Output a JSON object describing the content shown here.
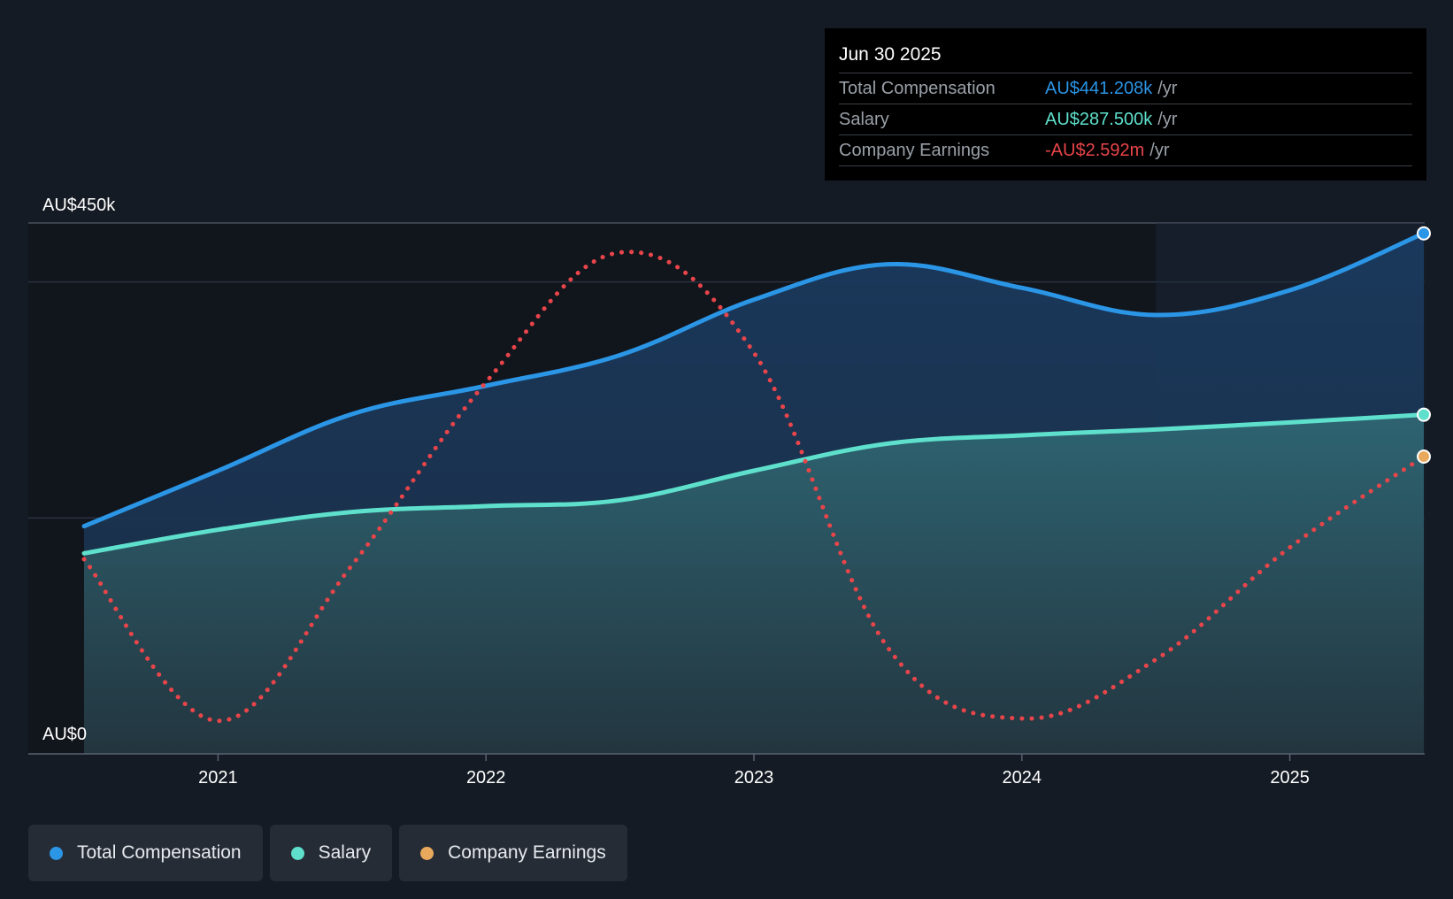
{
  "colors": {
    "background": "#151b24",
    "total_compensation": "#2b95e6",
    "salary": "#5ee0cc",
    "company_earnings": "#e8454a",
    "earnings_marker": "#e8a95c"
  },
  "tooltip": {
    "date": "Jun 30 2025",
    "rows": [
      {
        "label": "Total Compensation",
        "value": "AU$441.208k",
        "unit": "/yr"
      },
      {
        "label": "Salary",
        "value": "AU$287.500k",
        "unit": "/yr"
      },
      {
        "label": "Company Earnings",
        "value": "-AU$2.592m",
        "unit": "/yr"
      }
    ]
  },
  "legend": [
    {
      "label": "Total Compensation",
      "icon": "dot-icon"
    },
    {
      "label": "Salary",
      "icon": "dot-icon"
    },
    {
      "label": "Company Earnings",
      "icon": "dot-icon"
    }
  ],
  "chart_data": {
    "type": "area",
    "title": "",
    "y_axis": {
      "min_label": "AU$0",
      "max_label": "AU$450k",
      "ylim": [
        0,
        450000
      ]
    },
    "x_ticks": [
      2021,
      2022,
      2023,
      2024,
      2025
    ],
    "xlim": [
      2020.5,
      2025.5
    ],
    "highlight_start": 2024.5,
    "series": [
      {
        "name": "Total Compensation",
        "unit": "AU$",
        "style": "solid-area",
        "x": [
          2020.5,
          2021.0,
          2021.5,
          2022.0,
          2022.5,
          2023.0,
          2023.5,
          2024.0,
          2024.5,
          2025.0,
          2025.5
        ],
        "values": [
          193000,
          240000,
          288000,
          312000,
          338000,
          385000,
          415000,
          395000,
          372000,
          393000,
          441208
        ]
      },
      {
        "name": "Salary",
        "unit": "AU$",
        "style": "solid-area",
        "x": [
          2020.5,
          2021.0,
          2021.5,
          2022.0,
          2022.5,
          2023.0,
          2023.5,
          2024.0,
          2024.5,
          2025.0,
          2025.5
        ],
        "values": [
          170000,
          190000,
          205000,
          210000,
          215000,
          240000,
          263000,
          270000,
          275000,
          281000,
          287500
        ]
      },
      {
        "name": "Company Earnings",
        "unit": "AU$",
        "style": "dotted",
        "note": "scaled to chart height; latest value -AU$2.592m",
        "x": [
          2020.5,
          2021.0,
          2021.5,
          2022.0,
          2022.5,
          2023.0,
          2023.5,
          2024.0,
          2024.5,
          2025.0,
          2025.5
        ],
        "values": [
          165000,
          28000,
          160000,
          315000,
          425000,
          340000,
          90000,
          30000,
          80000,
          175000,
          252000
        ]
      }
    ]
  }
}
